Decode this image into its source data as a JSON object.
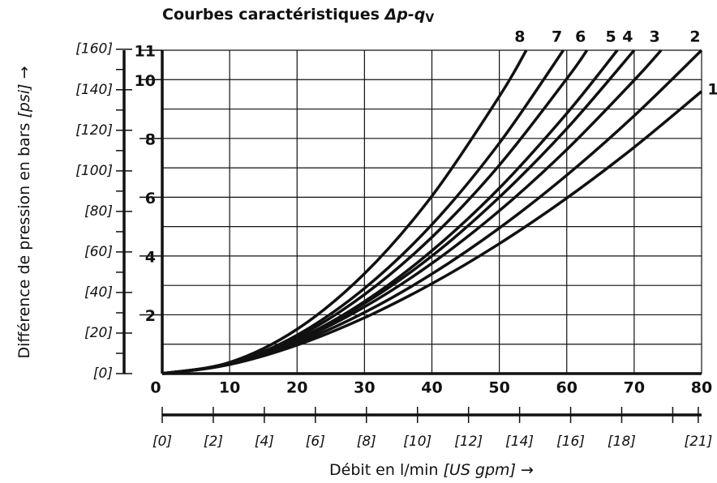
{
  "chart_data": {
    "type": "line",
    "title": "Courbes caractéristiques",
    "title_symbol": "Δp-q",
    "title_subscript": "V",
    "y_label": "Différence de pression en bars",
    "y_label_unit": "[psi]",
    "y_label_arrow": "→",
    "x_label": "Débit en l/min",
    "x_label_unit": "[US gpm]",
    "x_label_arrow": "→",
    "xlim": [
      0,
      80
    ],
    "xticks": [
      0,
      10,
      20,
      30,
      40,
      50,
      60,
      70,
      80
    ],
    "ylim": [
      0,
      11
    ],
    "yticks": [
      2,
      4,
      6,
      8,
      10,
      11
    ],
    "ygrid": [
      1,
      2,
      3,
      4,
      5,
      6,
      7,
      8,
      9,
      10,
      11
    ],
    "y2lim": [
      0,
      159.5
    ],
    "y2ticks": [
      {
        "value": 0,
        "label": "[0]"
      },
      {
        "value": 20,
        "label": "[20]"
      },
      {
        "value": 40,
        "label": "[40]"
      },
      {
        "value": 60,
        "label": "[60]"
      },
      {
        "value": 80,
        "label": "[80]"
      },
      {
        "value": 100,
        "label": "[100]"
      },
      {
        "value": 120,
        "label": "[120]"
      },
      {
        "value": 140,
        "label": "[140]"
      },
      {
        "value": 160,
        "label": "[160]"
      }
    ],
    "y2minor": [
      10,
      30,
      50,
      70,
      90,
      110,
      130,
      150
    ],
    "x2lim": [
      0,
      21.13
    ],
    "x2ticks": [
      {
        "value": 0,
        "label": "[0]"
      },
      {
        "value": 2,
        "label": "[2]"
      },
      {
        "value": 4,
        "label": "[4]"
      },
      {
        "value": 6,
        "label": "[6]"
      },
      {
        "value": 8,
        "label": "[8]"
      },
      {
        "value": 10,
        "label": "[10]"
      },
      {
        "value": 12,
        "label": "[12]"
      },
      {
        "value": 14,
        "label": "[14]"
      },
      {
        "value": 16,
        "label": "[16]"
      },
      {
        "value": 18,
        "label": "[18]"
      },
      {
        "value": 21,
        "label": "[21]"
      }
    ],
    "x2minor": [
      20
    ],
    "grid": true,
    "color": "#111111",
    "series": [
      {
        "name": "1",
        "x": [
          0,
          10,
          20,
          30,
          40,
          50,
          60,
          70,
          80
        ],
        "values": [
          0,
          0.31,
          0.97,
          1.9,
          3.06,
          4.42,
          5.97,
          7.7,
          9.6
        ]
      },
      {
        "name": "2",
        "x": [
          0,
          10,
          20,
          30,
          40,
          50,
          60,
          70,
          80
        ],
        "values": [
          0,
          0.32,
          1.04,
          2.08,
          3.39,
          4.95,
          6.75,
          8.77,
          11
        ]
      },
      {
        "name": "3",
        "x": [
          0,
          10,
          20,
          30,
          40,
          50,
          60,
          70,
          74
        ],
        "values": [
          0,
          0.33,
          1.11,
          2.27,
          3.75,
          5.54,
          7.62,
          9.98,
          11
        ]
      },
      {
        "name": "4",
        "x": [
          0,
          10,
          20,
          30,
          40,
          50,
          60,
          70
        ],
        "values": [
          0,
          0.33,
          1.15,
          2.39,
          4.0,
          6.0,
          8.33,
          11
        ]
      },
      {
        "name": "5",
        "x": [
          0,
          10,
          20,
          30,
          40,
          50,
          60,
          67.5
        ],
        "values": [
          0,
          0.32,
          1.16,
          2.45,
          4.18,
          6.31,
          8.85,
          11
        ]
      },
      {
        "name": "6",
        "x": [
          0,
          10,
          20,
          30,
          40,
          50,
          60,
          63
        ],
        "values": [
          0,
          0.33,
          1.24,
          2.69,
          4.64,
          7.09,
          10.03,
          11
        ]
      },
      {
        "name": "7",
        "x": [
          0,
          10,
          20,
          30,
          40,
          50,
          59.5
        ],
        "values": [
          0,
          0.34,
          1.31,
          2.9,
          5.07,
          7.84,
          11
        ]
      },
      {
        "name": "8",
        "x": [
          0,
          10,
          20,
          30,
          40,
          50,
          54
        ],
        "values": [
          0,
          0.38,
          1.51,
          3.4,
          6.04,
          9.43,
          11
        ]
      }
    ]
  }
}
